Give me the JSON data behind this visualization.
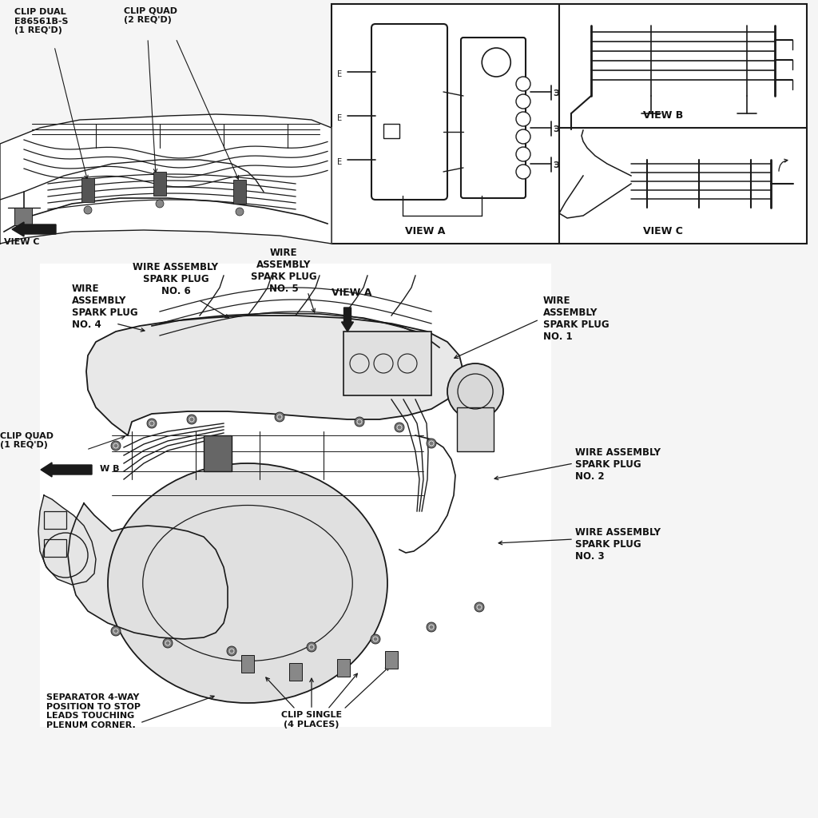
{
  "background_color": "#f5f5f5",
  "line_color": "#1a1a1a",
  "text_color": "#111111",
  "labels": {
    "clip_dual": "CLIP DUAL\nE86561B-S\n(1 REQ'D)",
    "clip_quad_top": "CLIP QUAD\n(2 REQ'D)",
    "clip_quad_bottom": "CLIP QUAD\n(1 REQ'D)",
    "wire1": "WIRE\nASSEMBLY\nSPARK PLUG\nNO. 1",
    "wire2": "WIRE ASSEMBLY\nSPARK PLUG\nNO. 2",
    "wire3": "WIRE ASSEMBLY\nSPARK PLUG\nNO. 3",
    "wire4": "WIRE\nASSEMBLY\nSPARK PLUG\nNO. 4",
    "wire5": "WIRE\nASSEMBLY\nSPARK PLUG\nNO. 5",
    "wire6": "WIRE ASSEMBLY\nSPARK PLUG\nNO. 6",
    "separator": "SEPARATOR 4-WAY\nPOSITION TO STOP\nLEADS TOUCHING\nPLENUM CORNER.",
    "clip_single": "CLIP SINGLE\n(4 PLACES)",
    "view_a": "VIEW A",
    "view_b": "VIEW B",
    "view_c": "VIEW C",
    "view_c_arrow": "VIEW C",
    "view_b_arrow": "W B"
  }
}
